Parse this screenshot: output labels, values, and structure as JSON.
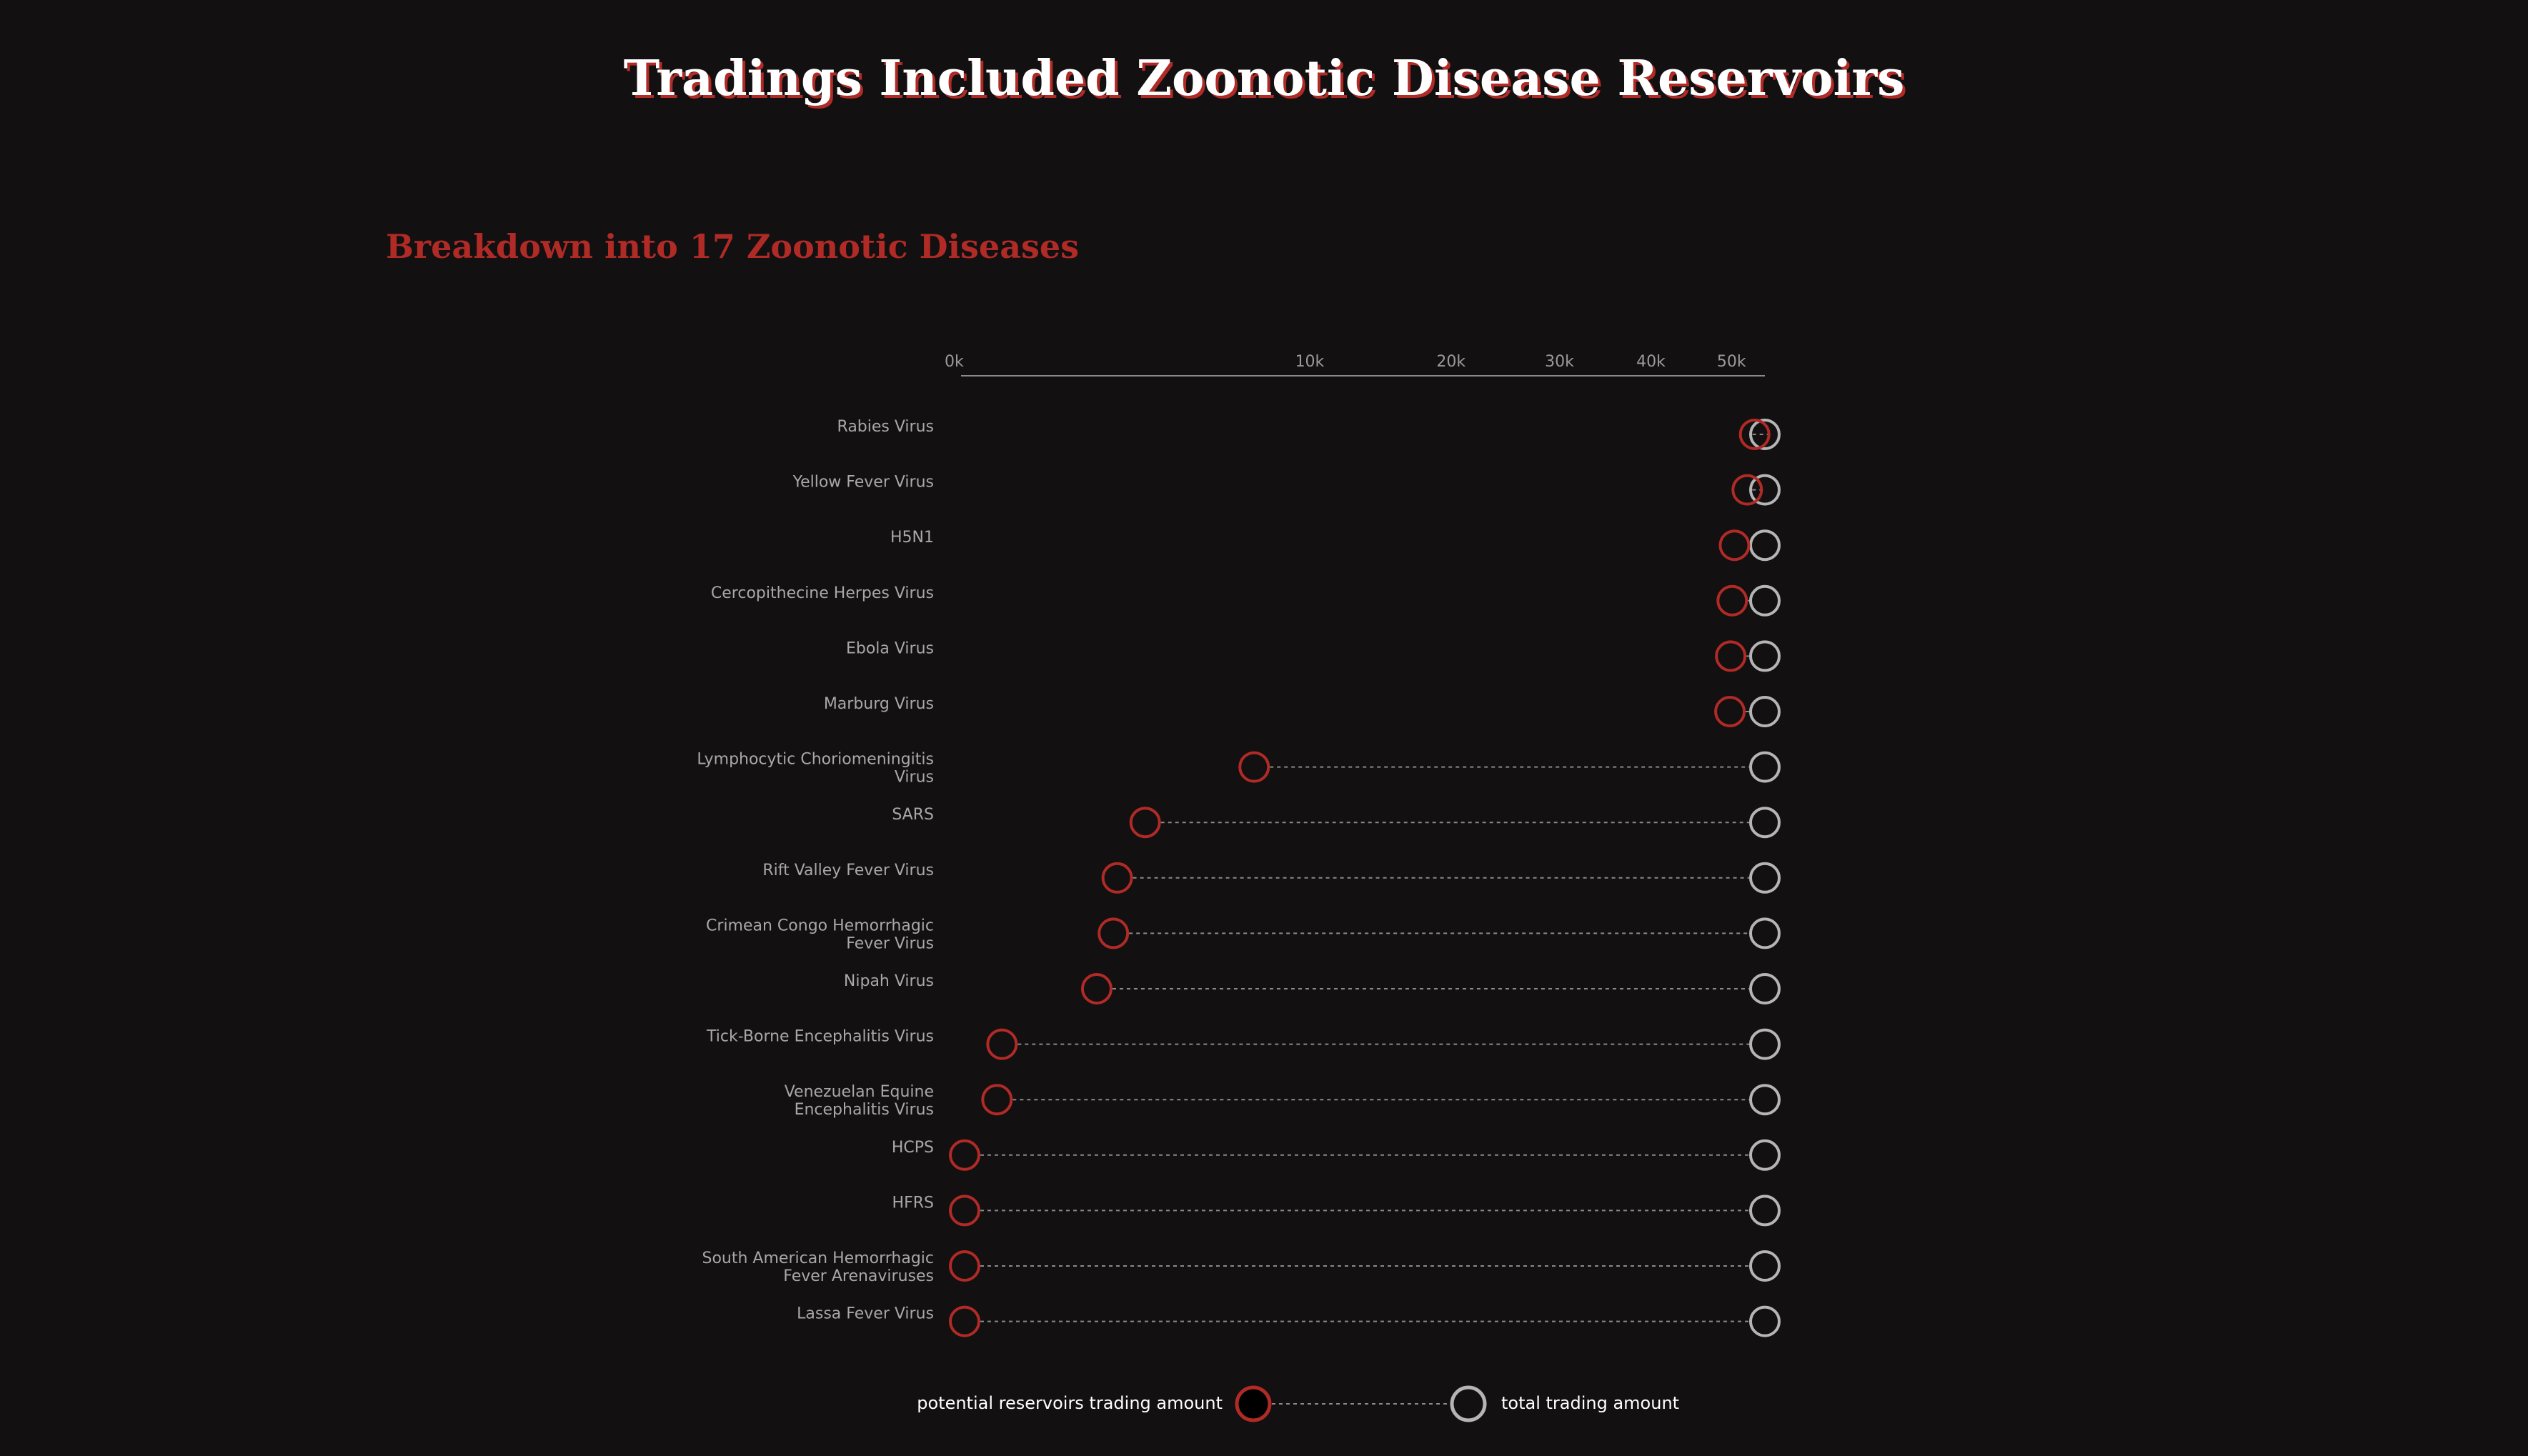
{
  "title": "Tradings Included Zoonotic Disease Reservoirs",
  "subtitle": "Breakdown into 17 Zoonotic Diseases",
  "colors": {
    "background": "#121011",
    "potential": "#b02a26",
    "total": "#b5b5b5",
    "connector": "#8a8a8a"
  },
  "legend": {
    "potential_label": "potential reservoirs trading amount",
    "total_label": "total trading amount"
  },
  "chart_data": {
    "type": "dumbbell",
    "x_scale": "sqrt",
    "xlim": [
      0,
      55000
    ],
    "tick_values": [
      0,
      10000,
      20000,
      30000,
      40000,
      50000
    ],
    "tick_labels": [
      "0k",
      "10k",
      "20k",
      "30k",
      "40k",
      "50k"
    ],
    "grid": false,
    "legend_position": "bottom",
    "series": [
      {
        "name": "potential reservoirs trading amount"
      },
      {
        "name": "total trading amount"
      }
    ],
    "categories": [
      [
        "Rabies Virus"
      ],
      [
        "Yellow Fever Virus"
      ],
      [
        "H5N1"
      ],
      [
        "Cercopithecine Herpes Virus"
      ],
      [
        "Ebola Virus"
      ],
      [
        "Marburg Virus"
      ],
      [
        "Lymphocytic Choriomeningitis",
        "Virus"
      ],
      [
        "SARS"
      ],
      [
        "Rift Valley Fever Virus"
      ],
      [
        "Crimean Congo Hemorrhagic",
        "Fever Virus"
      ],
      [
        "Nipah Virus"
      ],
      [
        "Tick-Borne Encephalitis Virus"
      ],
      [
        "Venezuelan Equine",
        "Encephalitis Virus"
      ],
      [
        "HCPS"
      ],
      [
        "HFRS"
      ],
      [
        "South American Hemorrhagic",
        "Fever Arenaviruses"
      ],
      [
        "Lassa Fever Virus"
      ]
    ],
    "potential": [
      53600,
      52600,
      50900,
      50600,
      50400,
      50300,
      7200,
      2800,
      2000,
      1900,
      1500,
      120,
      90,
      0,
      0,
      0,
      0
    ],
    "total": [
      55000,
      55000,
      55000,
      55000,
      55000,
      55000,
      55000,
      55000,
      55000,
      55000,
      55000,
      55000,
      55000,
      55000,
      55000,
      55000,
      55000
    ]
  }
}
